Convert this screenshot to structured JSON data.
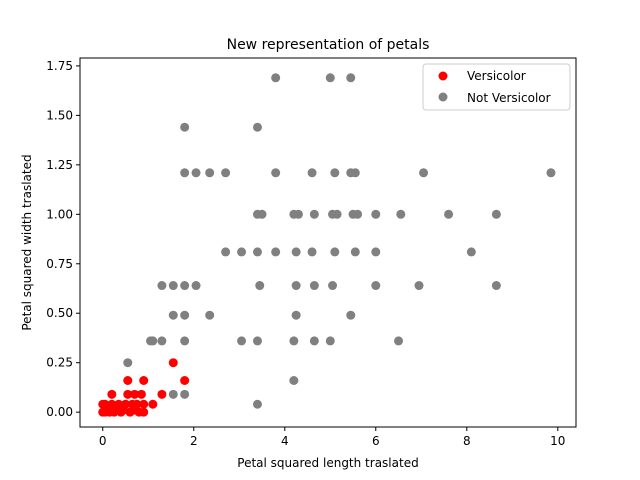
{
  "chart_data": {
    "type": "scatter",
    "title": "New representation of petals",
    "xlabel": "Petal squared length traslated",
    "ylabel": "Petal squared width traslated",
    "xlim": [
      -0.5,
      10.4
    ],
    "ylim": [
      -0.075,
      1.79
    ],
    "xticks": [
      0,
      2,
      4,
      6,
      8,
      10
    ],
    "yticks": [
      0.0,
      0.25,
      0.5,
      0.75,
      1.0,
      1.25,
      1.5,
      1.75
    ],
    "xtick_labels": [
      "0",
      "2",
      "4",
      "6",
      "8",
      "10"
    ],
    "ytick_labels": [
      "0.00",
      "0.25",
      "0.50",
      "0.75",
      "1.00",
      "1.25",
      "1.50",
      "1.75"
    ],
    "grid": false,
    "legend_position": "top-right",
    "series": [
      {
        "name": "Versicolor",
        "color": "#ff0000",
        "points": [
          [
            0.0,
            0.0
          ],
          [
            0.0,
            0.04
          ],
          [
            0.05,
            0.0
          ],
          [
            0.05,
            0.04
          ],
          [
            0.1,
            0.01
          ],
          [
            0.15,
            0.0
          ],
          [
            0.2,
            0.04
          ],
          [
            0.2,
            0.09
          ],
          [
            0.25,
            0.0
          ],
          [
            0.3,
            0.01
          ],
          [
            0.35,
            0.04
          ],
          [
            0.4,
            0.0
          ],
          [
            0.45,
            0.01
          ],
          [
            0.5,
            0.04
          ],
          [
            0.55,
            0.09
          ],
          [
            0.55,
            0.16
          ],
          [
            0.6,
            0.0
          ],
          [
            0.65,
            0.04
          ],
          [
            0.7,
            0.01
          ],
          [
            0.7,
            0.09
          ],
          [
            0.75,
            0.04
          ],
          [
            0.8,
            0.0
          ],
          [
            0.85,
            0.09
          ],
          [
            0.9,
            0.16
          ],
          [
            0.9,
            0.04
          ],
          [
            0.9,
            0.0
          ],
          [
            1.1,
            0.04
          ],
          [
            1.3,
            0.09
          ],
          [
            1.55,
            0.25
          ],
          [
            1.8,
            0.16
          ]
        ]
      },
      {
        "name": "Not Versicolor",
        "color": "#808080",
        "points": [
          [
            3.8,
            1.69
          ],
          [
            5.0,
            1.69
          ],
          [
            5.45,
            1.69
          ],
          [
            1.8,
            1.44
          ],
          [
            3.4,
            1.44
          ],
          [
            1.8,
            1.21
          ],
          [
            2.05,
            1.21
          ],
          [
            2.35,
            1.21
          ],
          [
            2.7,
            1.21
          ],
          [
            3.8,
            1.21
          ],
          [
            4.6,
            1.21
          ],
          [
            5.1,
            1.21
          ],
          [
            5.45,
            1.21
          ],
          [
            5.55,
            1.21
          ],
          [
            7.05,
            1.21
          ],
          [
            9.85,
            1.21
          ],
          [
            3.4,
            1.0
          ],
          [
            3.5,
            1.0
          ],
          [
            4.2,
            1.0
          ],
          [
            4.3,
            1.0
          ],
          [
            4.65,
            1.0
          ],
          [
            5.05,
            1.0
          ],
          [
            5.15,
            1.0
          ],
          [
            5.5,
            1.0
          ],
          [
            5.6,
            1.0
          ],
          [
            6.0,
            1.0
          ],
          [
            6.55,
            1.0
          ],
          [
            7.6,
            1.0
          ],
          [
            8.65,
            1.0
          ],
          [
            2.7,
            0.81
          ],
          [
            3.05,
            0.81
          ],
          [
            3.4,
            0.81
          ],
          [
            3.8,
            0.81
          ],
          [
            4.25,
            0.81
          ],
          [
            4.6,
            0.81
          ],
          [
            5.1,
            0.81
          ],
          [
            5.55,
            0.81
          ],
          [
            6.0,
            0.81
          ],
          [
            8.1,
            0.81
          ],
          [
            1.3,
            0.64
          ],
          [
            1.55,
            0.64
          ],
          [
            1.8,
            0.64
          ],
          [
            2.05,
            0.64
          ],
          [
            3.45,
            0.64
          ],
          [
            4.25,
            0.64
          ],
          [
            4.65,
            0.64
          ],
          [
            5.05,
            0.64
          ],
          [
            6.0,
            0.64
          ],
          [
            6.95,
            0.64
          ],
          [
            8.65,
            0.64
          ],
          [
            1.55,
            0.49
          ],
          [
            1.8,
            0.49
          ],
          [
            2.35,
            0.49
          ],
          [
            4.25,
            0.49
          ],
          [
            5.45,
            0.49
          ],
          [
            1.05,
            0.36
          ],
          [
            1.1,
            0.36
          ],
          [
            1.3,
            0.36
          ],
          [
            1.8,
            0.36
          ],
          [
            3.05,
            0.36
          ],
          [
            3.4,
            0.36
          ],
          [
            4.2,
            0.36
          ],
          [
            4.65,
            0.36
          ],
          [
            5.0,
            0.36
          ],
          [
            6.5,
            0.36
          ],
          [
            0.55,
            0.25
          ],
          [
            4.2,
            0.16
          ],
          [
            1.55,
            0.09
          ],
          [
            1.8,
            0.09
          ],
          [
            3.4,
            0.04
          ]
        ]
      }
    ]
  }
}
